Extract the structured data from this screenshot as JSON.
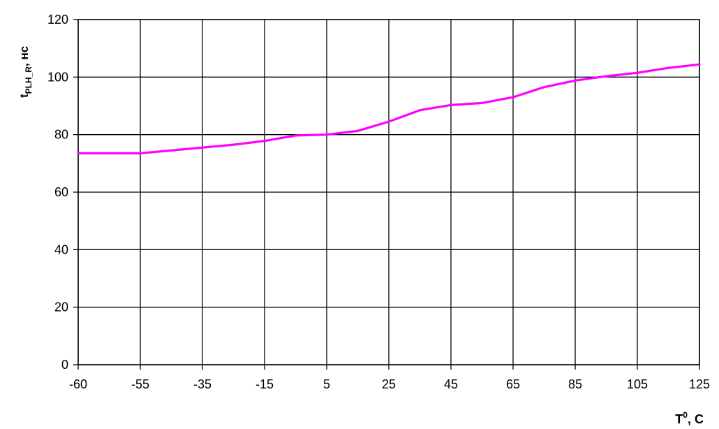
{
  "chart_data": {
    "type": "line",
    "ylabel": {
      "main": "t",
      "sub": "PLH_R",
      "unit": ", нс"
    },
    "xlabel": {
      "main": "T",
      "sup": "0",
      "unit": ", C"
    },
    "categories": [
      "-60",
      "-55",
      "-35",
      "-15",
      "5",
      "25",
      "45",
      "65",
      "85",
      "105",
      "125"
    ],
    "ylim": [
      0,
      120
    ],
    "yticks": [
      "0",
      "20",
      "40",
      "60",
      "80",
      "100",
      "120"
    ],
    "grid": true,
    "series": [
      {
        "color": "#ff00ff",
        "x": [
          0,
          1,
          1.5,
          2,
          2.5,
          3,
          3.5,
          4,
          4.5,
          5,
          5.5,
          6,
          6.5,
          7,
          7.5,
          8,
          8.5,
          9,
          9.5,
          10
        ],
        "values": [
          73.5,
          73.5,
          74.5,
          75.5,
          76.5,
          77.8,
          79.7,
          80.0,
          81.3,
          84.5,
          88.5,
          90.3,
          91.0,
          93.0,
          96.5,
          98.8,
          100.3,
          101.5,
          103.2,
          104.4
        ]
      }
    ]
  }
}
